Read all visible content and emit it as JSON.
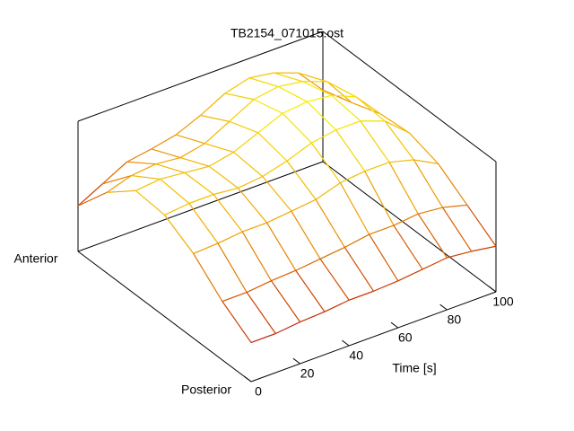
{
  "chart_data": {
    "type": "surface",
    "title": "TB2154_071015.ost",
    "xlabel": "Time [s]",
    "x": [
      0,
      10,
      20,
      30,
      40,
      50,
      60,
      70,
      80,
      90,
      100
    ],
    "xlim": [
      0,
      100
    ],
    "xticks": [
      0,
      20,
      40,
      60,
      80,
      100
    ],
    "y_labels": [
      "Posterior",
      "Anterior"
    ],
    "zlim": [
      0,
      1
    ],
    "z": [
      [
        0.3,
        0.3,
        0.32,
        0.33,
        0.35,
        0.35,
        0.36,
        0.38,
        0.4,
        0.38,
        0.35
      ],
      [
        0.45,
        0.45,
        0.47,
        0.48,
        0.5,
        0.52,
        0.55,
        0.55,
        0.57,
        0.55,
        0.5
      ],
      [
        0.65,
        0.66,
        0.68,
        0.68,
        0.7,
        0.72,
        0.78,
        0.8,
        0.8,
        0.75,
        0.65
      ],
      [
        0.78,
        0.8,
        0.8,
        0.78,
        0.8,
        0.85,
        0.92,
        0.95,
        0.95,
        0.88,
        0.72
      ],
      [
        0.8,
        0.82,
        0.8,
        0.78,
        0.82,
        0.9,
        0.98,
        1.0,
        0.98,
        0.9,
        0.7
      ],
      [
        0.62,
        0.68,
        0.7,
        0.68,
        0.72,
        0.82,
        0.92,
        0.95,
        0.92,
        0.85,
        0.62
      ],
      [
        0.35,
        0.45,
        0.55,
        0.58,
        0.62,
        0.7,
        0.8,
        0.85,
        0.82,
        0.75,
        0.55
      ]
    ],
    "colors": [
      "#7a00d0",
      "#c83000",
      "#f0a000",
      "#f8f000"
    ]
  }
}
